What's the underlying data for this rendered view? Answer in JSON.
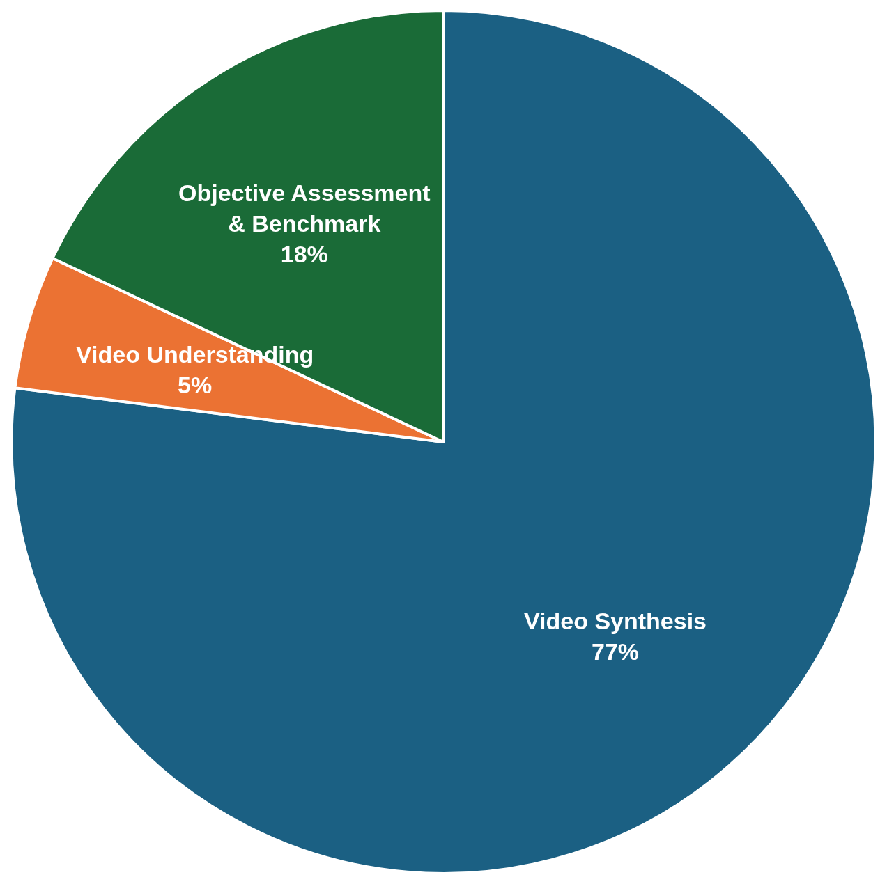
{
  "chart_data": {
    "type": "pie",
    "categories": [
      "Video Synthesis",
      "Video Understanding",
      "Objective Assessment & Benchmark"
    ],
    "values": [
      77,
      5,
      18
    ],
    "value_labels": [
      "77%",
      "5%",
      "18%"
    ],
    "colors": [
      "#1b6083",
      "#eb7233",
      "#1a6b37"
    ],
    "legend": false
  }
}
